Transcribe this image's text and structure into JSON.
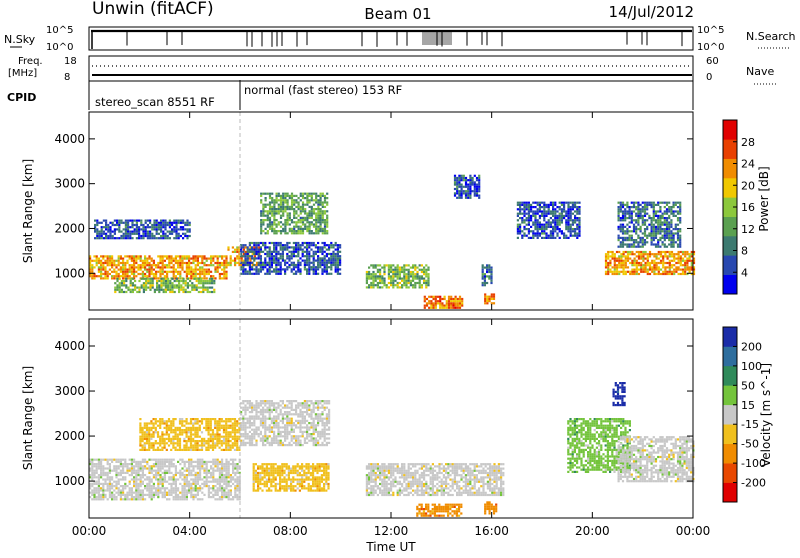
{
  "header": {
    "station": "Unwin (fitACF)",
    "beam": "Beam 01",
    "date": "14/Jul/2012"
  },
  "top_panels": {
    "nsky_label": "N.Sky",
    "nsearch_label": "N.Search",
    "nsky_ticks": [
      "10^5",
      "10^0"
    ],
    "nsearch_ticks": [
      "10^5",
      "10^0"
    ],
    "freq_label_1": "Freq.",
    "freq_label_2": "[MHz]",
    "freq_ticks": [
      "18",
      "8"
    ],
    "nave_label": "Nave",
    "nave_ticks": [
      "60",
      "0"
    ],
    "cpid_label": "CPID",
    "cpid_modes": [
      {
        "text": "stereo_scan 8551 RF",
        "start_hour": 0
      },
      {
        "text": "normal (fast stereo) 153 RF",
        "start_hour": 6
      }
    ]
  },
  "chart_data": [
    {
      "type": "heatmap",
      "name": "power",
      "ylabel": "Slant Range [km]",
      "xlabel": "Time UT",
      "x_ticks": [
        "00:00",
        "04:00",
        "08:00",
        "12:00",
        "16:00",
        "20:00",
        "00:00"
      ],
      "xlim_hours": [
        0,
        24
      ],
      "ylim_km": [
        180,
        4600
      ],
      "y_ticks": [
        1000,
        2000,
        3000,
        4000
      ],
      "colorbar": {
        "label": "Power [dB]",
        "ticks": [
          28,
          24,
          20,
          16,
          12,
          8,
          4
        ],
        "range": [
          0,
          32
        ],
        "colors": [
          "#0000ee",
          "#2848b0",
          "#3c7a70",
          "#5aa050",
          "#8cc83c",
          "#f0c800",
          "#f08c00",
          "#e84000",
          "#e00000"
        ]
      },
      "echo_regions": [
        {
          "t0": 0.0,
          "t1": 5.5,
          "r0": 900,
          "r1": 1400,
          "level": 22
        },
        {
          "t0": 5.5,
          "t1": 6.8,
          "r0": 1200,
          "r1": 1600,
          "level": 22
        },
        {
          "t0": 6.8,
          "t1": 9.5,
          "r0": 1900,
          "r1": 2800,
          "level": 12
        },
        {
          "t0": 6.0,
          "t1": 10.0,
          "r0": 1000,
          "r1": 1700,
          "level": 6
        },
        {
          "t0": 1.0,
          "t1": 5.0,
          "r0": 600,
          "r1": 900,
          "level": 14
        },
        {
          "t0": 0.2,
          "t1": 4.0,
          "r0": 1800,
          "r1": 2200,
          "level": 6
        },
        {
          "t0": 11.0,
          "t1": 13.5,
          "r0": 700,
          "r1": 1200,
          "level": 14
        },
        {
          "t0": 13.3,
          "t1": 14.8,
          "r0": 250,
          "r1": 500,
          "level": 24
        },
        {
          "t0": 15.7,
          "t1": 16.1,
          "r0": 350,
          "r1": 550,
          "level": 22
        },
        {
          "t0": 15.6,
          "t1": 16.0,
          "r0": 750,
          "r1": 1200,
          "level": 8
        },
        {
          "t0": 14.5,
          "t1": 15.5,
          "r0": 2700,
          "r1": 3200,
          "level": 6
        },
        {
          "t0": 17.0,
          "t1": 19.5,
          "r0": 1800,
          "r1": 2600,
          "level": 6
        },
        {
          "t0": 20.5,
          "t1": 24.0,
          "r0": 1000,
          "r1": 1500,
          "level": 22
        },
        {
          "t0": 21.0,
          "t1": 23.5,
          "r0": 1600,
          "r1": 2600,
          "level": 8
        }
      ]
    },
    {
      "type": "heatmap",
      "name": "velocity",
      "ylabel": "Slant Range [km]",
      "xlabel": "Time UT",
      "x_ticks": [
        "00:00",
        "04:00",
        "08:00",
        "12:00",
        "16:00",
        "20:00",
        "00:00"
      ],
      "xlim_hours": [
        0,
        24
      ],
      "ylim_km": [
        180,
        4600
      ],
      "y_ticks": [
        1000,
        2000,
        3000,
        4000
      ],
      "colorbar": {
        "label": "Velocity [m s^-1]",
        "ticks": [
          200,
          100,
          50,
          15,
          -15,
          -50,
          -100,
          -200
        ],
        "colors": [
          "#1a2ca8",
          "#2e6e9e",
          "#2f8a5a",
          "#74c43c",
          "#c8c8c8",
          "#f0c01e",
          "#f08c00",
          "#e84800",
          "#e00000"
        ]
      },
      "echo_regions": [
        {
          "t0": 0.0,
          "t1": 6.0,
          "r0": 600,
          "r1": 1500,
          "velocity": 0
        },
        {
          "t0": 6.0,
          "t1": 9.5,
          "r0": 1800,
          "r1": 2800,
          "velocity": 0
        },
        {
          "t0": 6.5,
          "t1": 9.5,
          "r0": 800,
          "r1": 1400,
          "velocity": -50
        },
        {
          "t0": 2.0,
          "t1": 6.0,
          "r0": 1700,
          "r1": 2400,
          "velocity": -50
        },
        {
          "t0": 11.0,
          "t1": 16.5,
          "r0": 700,
          "r1": 1400,
          "velocity": 0
        },
        {
          "t0": 13.0,
          "t1": 14.8,
          "r0": 250,
          "r1": 500,
          "velocity": -100
        },
        {
          "t0": 15.7,
          "t1": 16.2,
          "r0": 300,
          "r1": 550,
          "velocity": -100
        },
        {
          "t0": 19.0,
          "t1": 21.5,
          "r0": 1200,
          "r1": 2400,
          "velocity": 40
        },
        {
          "t0": 21.0,
          "t1": 24.0,
          "r0": 1000,
          "r1": 2000,
          "velocity": 0
        },
        {
          "t0": 20.8,
          "t1": 21.3,
          "r0": 2700,
          "r1": 3200,
          "velocity": 200
        }
      ]
    }
  ]
}
